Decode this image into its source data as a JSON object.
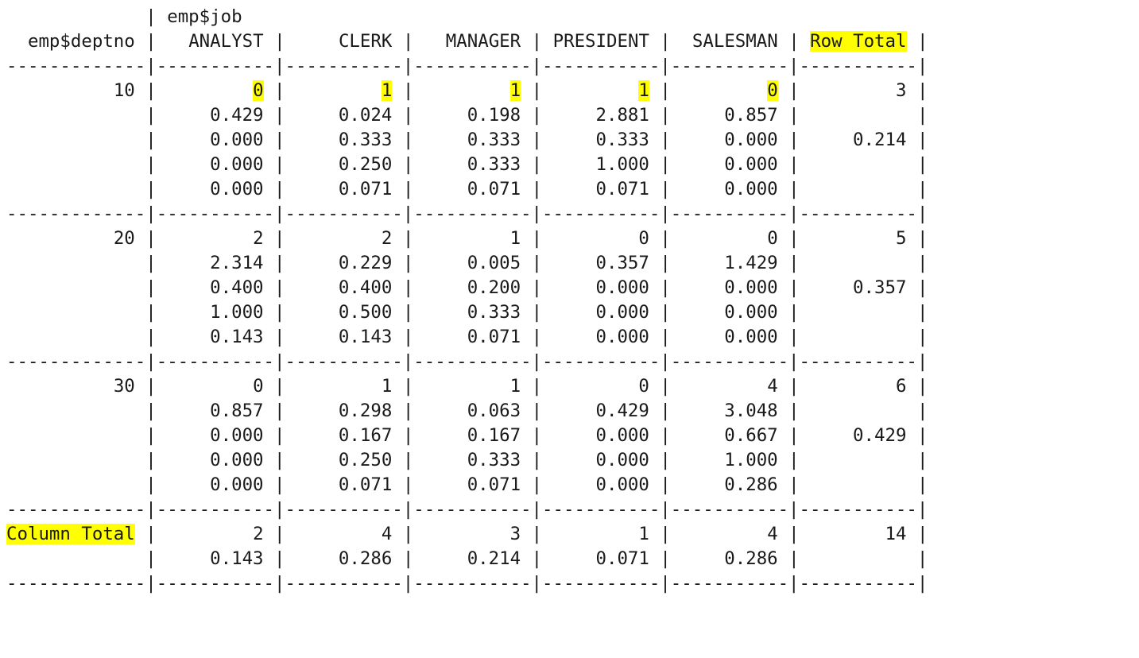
{
  "crosstab": {
    "col_var": "emp$job",
    "row_var": "emp$deptno",
    "columns": [
      "ANALYST",
      "CLERK",
      "MANAGER",
      "PRESIDENT",
      "SALESMAN",
      "Row Total"
    ],
    "rows": [
      {
        "label": "10",
        "counts": [
          "0",
          "1",
          "1",
          "1",
          "0"
        ],
        "row_total": "3",
        "row_prop": "0.214",
        "chisq": [
          "0.429",
          "0.024",
          "0.198",
          "2.881",
          "0.857"
        ],
        "prop_row": [
          "0.000",
          "0.333",
          "0.333",
          "0.333",
          "0.000"
        ],
        "prop_col": [
          "0.000",
          "0.250",
          "0.333",
          "1.000",
          "0.000"
        ],
        "prop_tbl": [
          "0.000",
          "0.071",
          "0.071",
          "0.071",
          "0.000"
        ]
      },
      {
        "label": "20",
        "counts": [
          "2",
          "2",
          "1",
          "0",
          "0"
        ],
        "row_total": "5",
        "row_prop": "0.357",
        "chisq": [
          "2.314",
          "0.229",
          "0.005",
          "0.357",
          "1.429"
        ],
        "prop_row": [
          "0.400",
          "0.400",
          "0.200",
          "0.000",
          "0.000"
        ],
        "prop_col": [
          "1.000",
          "0.500",
          "0.333",
          "0.000",
          "0.000"
        ],
        "prop_tbl": [
          "0.143",
          "0.143",
          "0.071",
          "0.000",
          "0.000"
        ]
      },
      {
        "label": "30",
        "counts": [
          "0",
          "1",
          "1",
          "0",
          "4"
        ],
        "row_total": "6",
        "row_prop": "0.429",
        "chisq": [
          "0.857",
          "0.298",
          "0.063",
          "0.429",
          "3.048"
        ],
        "prop_row": [
          "0.000",
          "0.167",
          "0.167",
          "0.000",
          "0.667"
        ],
        "prop_col": [
          "0.000",
          "0.250",
          "0.333",
          "0.000",
          "1.000"
        ],
        "prop_tbl": [
          "0.000",
          "0.071",
          "0.071",
          "0.000",
          "0.286"
        ]
      }
    ],
    "column_total": {
      "label": "Column Total",
      "counts": [
        "2",
        "4",
        "3",
        "1",
        "4"
      ],
      "grand_total": "14",
      "props": [
        "0.143",
        "0.286",
        "0.214",
        "0.071",
        "0.286"
      ]
    }
  },
  "highlight_color": "#ffff00"
}
